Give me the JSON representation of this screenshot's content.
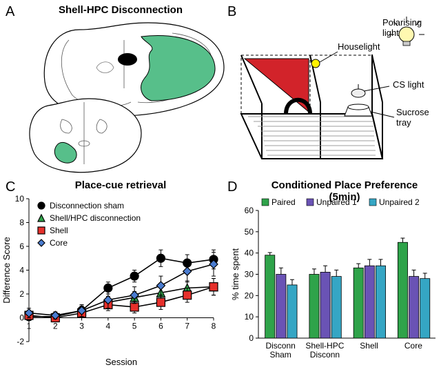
{
  "labels": {
    "A": "A",
    "B": "B",
    "C": "C",
    "D": "D"
  },
  "panelA": {
    "title": "Shell-HPC Disconnection",
    "lesion_color": "#57bf8a",
    "outline_color": "#000000",
    "bg": "#ffffff"
  },
  "panelB": {
    "triangle_color": "#d2232a",
    "houselight_color": "#fff200",
    "floor_stripe": "#9c9c9c",
    "annotations": {
      "polarising": "Polarising light",
      "houselight": "Houselight",
      "cs": "CS light",
      "sucrose": "Sucrose\ntray"
    }
  },
  "panelC": {
    "title": "Place-cue retrieval",
    "xlabel": "Session",
    "ylabel": "Difference Score",
    "ylim": [
      -2,
      10
    ],
    "ytick_step": 2,
    "xvals": [
      1,
      2,
      3,
      4,
      5,
      6,
      7,
      8
    ],
    "series": [
      {
        "name": "Disconnection sham",
        "marker": "circle",
        "color": "#000000",
        "fill": "#000000",
        "values": [
          0.1,
          0.1,
          0.6,
          2.5,
          3.5,
          5.0,
          4.6,
          4.9
        ],
        "err": [
          0.3,
          0.3,
          0.4,
          0.5,
          0.5,
          0.7,
          0.7,
          0.8
        ]
      },
      {
        "name": "Shell/HPC disconnection",
        "marker": "triangle",
        "color": "#000000",
        "fill": "#2fa34a",
        "values": [
          null,
          null,
          null,
          1.3,
          1.7,
          2.1,
          2.5,
          2.6
        ],
        "err": [
          null,
          null,
          null,
          0.5,
          0.5,
          0.6,
          0.6,
          0.7
        ]
      },
      {
        "name": "Shell",
        "marker": "square",
        "color": "#000000",
        "fill": "#e6302b",
        "values": [
          0.2,
          0.0,
          0.4,
          1.1,
          0.9,
          1.3,
          1.9,
          2.6
        ],
        "err": [
          0.3,
          0.3,
          0.4,
          0.5,
          0.5,
          0.6,
          0.6,
          0.7
        ]
      },
      {
        "name": "Core",
        "marker": "diamond",
        "color": "#000000",
        "fill": "#4a7cd0",
        "values": [
          0.4,
          0.2,
          0.6,
          1.5,
          1.9,
          2.7,
          3.9,
          4.5
        ],
        "err": [
          0.4,
          0.3,
          0.5,
          0.7,
          0.7,
          0.8,
          0.9,
          1.0
        ]
      }
    ],
    "line_width": 1.6,
    "marker_size": 6
  },
  "panelD": {
    "title": "Conditioned Place Preference\n(5min)",
    "ylabel": "% time spent",
    "ylim": [
      0,
      60
    ],
    "ytick_step": 10,
    "legend": [
      "Paired",
      "Unpaired 1",
      "Unpaired 2"
    ],
    "legend_colors": [
      "#2fa34a",
      "#6a53b5",
      "#35a6c4"
    ],
    "groups": [
      {
        "label": "Disconn\nSham",
        "vals": [
          39,
          30,
          25
        ],
        "err": [
          1.2,
          3.0,
          2.5
        ]
      },
      {
        "label": "Shell-HPC\nDisconn",
        "vals": [
          30,
          31,
          29
        ],
        "err": [
          2.5,
          3.0,
          3.0
        ]
      },
      {
        "label": "Shell",
        "vals": [
          33,
          34,
          34
        ],
        "err": [
          2.0,
          3.0,
          3.0
        ]
      },
      {
        "label": "Core",
        "vals": [
          45,
          29,
          28
        ],
        "err": [
          2.0,
          3.0,
          2.5
        ]
      }
    ],
    "bar_width": 0.22
  }
}
